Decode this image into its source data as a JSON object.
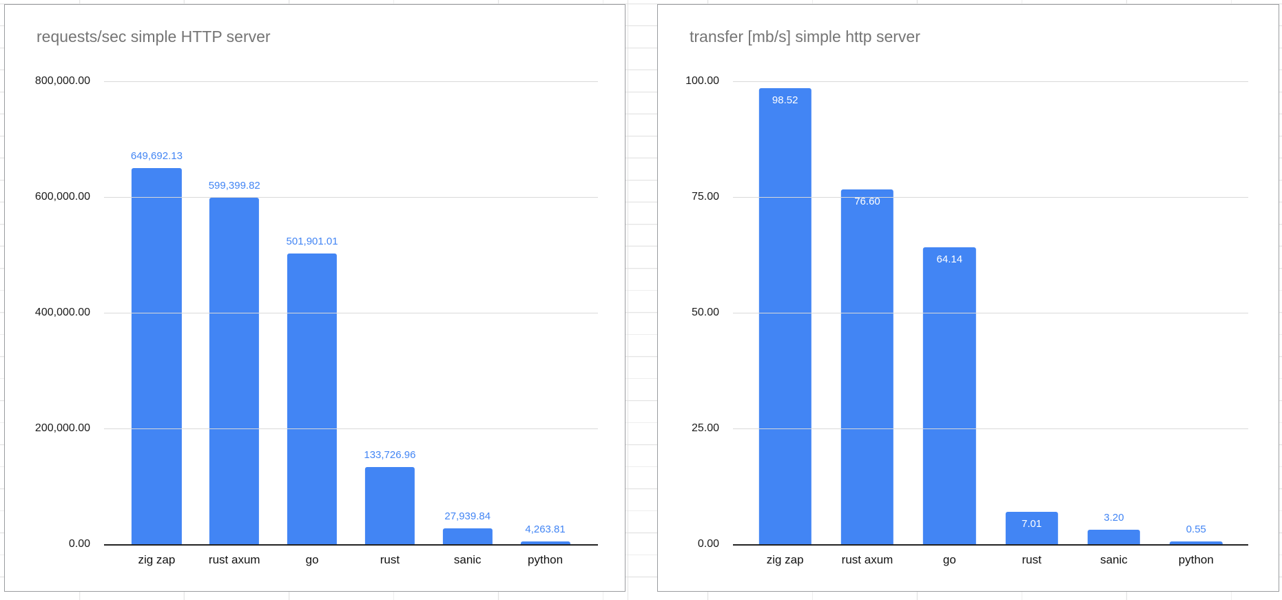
{
  "colors": {
    "bar": "#4285f4",
    "value_label_outside": "#4285f4",
    "value_label_inside": "#ffffff",
    "title": "#757575",
    "axis_text": "#1a1a1a",
    "gridline": "#d9d9d9",
    "baseline": "#212121",
    "panel_border": "#999b9e",
    "sheet_gridline": "#e3e3e3"
  },
  "chart_data": [
    {
      "type": "bar",
      "title": "requests/sec simple HTTP server",
      "categories": [
        "zig zap",
        "rust axum",
        "go",
        "rust",
        "sanic",
        "python"
      ],
      "values": [
        649692.13,
        599399.82,
        501901.01,
        133726.96,
        27939.84,
        4263.81
      ],
      "value_labels": [
        "649,692.13",
        "599,399.82",
        "501,901.01",
        "133,726.96",
        "27,939.84",
        "4,263.81"
      ],
      "value_label_inside": [
        false,
        false,
        false,
        false,
        false,
        false
      ],
      "y_ticks": [
        "0.00",
        "200,000.00",
        "400,000.00",
        "600,000.00",
        "800,000.00"
      ],
      "ylim": [
        0,
        800000
      ],
      "xlabel": "",
      "ylabel": "",
      "grid": true,
      "legend": "none"
    },
    {
      "type": "bar",
      "title": "transfer [mb/s] simple http server",
      "categories": [
        "zig zap",
        "rust axum",
        "go",
        "rust",
        "sanic",
        "python"
      ],
      "values": [
        98.52,
        76.6,
        64.14,
        7.01,
        3.2,
        0.55
      ],
      "value_labels": [
        "98.52",
        "76.60",
        "64.14",
        "7.01",
        "3.20",
        "0.55"
      ],
      "value_label_inside": [
        true,
        true,
        true,
        true,
        false,
        false
      ],
      "y_ticks": [
        "0.00",
        "25.00",
        "50.00",
        "75.00",
        "100.00"
      ],
      "ylim": [
        0,
        100
      ],
      "xlabel": "",
      "ylabel": "",
      "grid": true,
      "legend": "none"
    }
  ]
}
